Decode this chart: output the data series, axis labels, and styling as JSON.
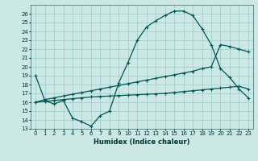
{
  "xlabel": "Humidex (Indice chaleur)",
  "bg_color": "#cce8e4",
  "grid_color": "#99cccc",
  "line_color": "#005555",
  "xlim": [
    -0.5,
    23.5
  ],
  "ylim": [
    13,
    27
  ],
  "xtick_labels": [
    "0",
    "1",
    "2",
    "3",
    "4",
    "5",
    "6",
    "7",
    "8",
    "9",
    "10",
    "11",
    "12",
    "13",
    "14",
    "15",
    "16",
    "17",
    "18",
    "19",
    "20",
    "21",
    "22",
    "23"
  ],
  "xtick_vals": [
    0,
    1,
    2,
    3,
    4,
    5,
    6,
    7,
    8,
    9,
    10,
    11,
    12,
    13,
    14,
    15,
    16,
    17,
    18,
    19,
    20,
    21,
    22,
    23
  ],
  "ytick_vals": [
    13,
    14,
    15,
    16,
    17,
    18,
    19,
    20,
    21,
    22,
    23,
    24,
    25,
    26
  ],
  "line1_x": [
    0,
    1,
    2,
    3,
    4,
    5,
    6,
    7,
    8,
    9,
    10,
    11,
    12,
    13,
    14,
    15,
    16,
    17,
    18,
    19,
    20,
    21,
    22,
    23
  ],
  "line1_y": [
    19.0,
    16.2,
    15.8,
    16.2,
    14.2,
    13.8,
    13.3,
    14.5,
    15.0,
    18.2,
    20.5,
    23.0,
    24.5,
    25.2,
    25.8,
    26.3,
    26.3,
    25.8,
    24.3,
    22.5,
    19.8,
    18.8,
    17.5,
    16.5
  ],
  "line2_x": [
    0,
    1,
    2,
    3,
    4,
    5,
    6,
    7,
    8,
    9,
    10,
    11,
    12,
    13,
    14,
    15,
    16,
    17,
    18,
    19,
    20,
    21,
    22,
    23
  ],
  "line2_y": [
    16.0,
    16.1,
    16.2,
    16.3,
    16.4,
    16.5,
    16.6,
    16.65,
    16.7,
    16.75,
    16.8,
    16.85,
    16.9,
    16.95,
    17.0,
    17.1,
    17.2,
    17.3,
    17.4,
    17.5,
    17.6,
    17.7,
    17.8,
    17.5
  ],
  "line3_x": [
    0,
    1,
    2,
    3,
    4,
    5,
    6,
    7,
    8,
    9,
    10,
    11,
    12,
    13,
    14,
    15,
    16,
    17,
    18,
    19,
    20,
    21,
    22,
    23
  ],
  "line3_y": [
    16.0,
    16.3,
    16.5,
    16.7,
    16.9,
    17.1,
    17.3,
    17.5,
    17.7,
    17.9,
    18.1,
    18.3,
    18.5,
    18.7,
    18.9,
    19.1,
    19.3,
    19.5,
    19.8,
    20.0,
    22.5,
    22.3,
    22.0,
    21.7
  ]
}
